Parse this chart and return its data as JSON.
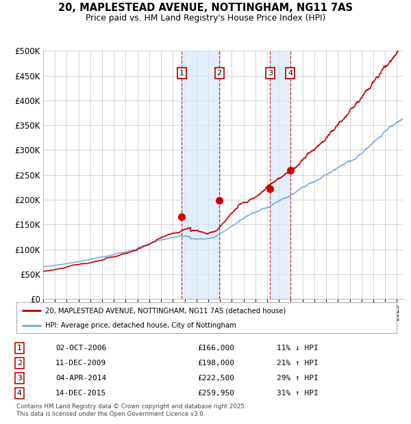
{
  "title1": "20, MAPLESTEAD AVENUE, NOTTINGHAM, NG11 7AS",
  "title2": "Price paid vs. HM Land Registry's House Price Index (HPI)",
  "ylim": [
    0,
    500000
  ],
  "yticks": [
    0,
    50000,
    100000,
    150000,
    200000,
    250000,
    300000,
    350000,
    400000,
    450000,
    500000
  ],
  "ytick_labels": [
    "£0",
    "£50K",
    "£100K",
    "£150K",
    "£200K",
    "£250K",
    "£300K",
    "£350K",
    "£400K",
    "£450K",
    "£500K"
  ],
  "red_line_color": "#cc0000",
  "blue_line_color": "#7aade0",
  "transactions": [
    {
      "date": 2006.75,
      "price": 166000,
      "label": "1"
    },
    {
      "date": 2009.94,
      "price": 198000,
      "label": "2"
    },
    {
      "date": 2014.25,
      "price": 222500,
      "label": "3"
    },
    {
      "date": 2015.95,
      "price": 259950,
      "label": "4"
    }
  ],
  "vline_pairs": [
    [
      2006.75,
      2009.94
    ],
    [
      2014.25,
      2015.95
    ]
  ],
  "legend_label_red": "20, MAPLESTEAD AVENUE, NOTTINGHAM, NG11 7AS (detached house)",
  "legend_label_blue": "HPI: Average price, detached house, City of Nottingham",
  "table_rows": [
    {
      "num": "1",
      "date": "02-OCT-2006",
      "price": "£166,000",
      "pct": "11% ↓ HPI"
    },
    {
      "num": "2",
      "date": "11-DEC-2009",
      "price": "£198,000",
      "pct": "21% ↑ HPI"
    },
    {
      "num": "3",
      "date": "04-APR-2014",
      "price": "£222,500",
      "pct": "29% ↑ HPI"
    },
    {
      "num": "4",
      "date": "14-DEC-2015",
      "price": "£259,950",
      "pct": "31% ↑ HPI"
    }
  ],
  "footnote": "Contains HM Land Registry data © Crown copyright and database right 2025.\nThis data is licensed under the Open Government Licence v3.0.",
  "xmin": 1995.0,
  "xmax": 2025.5
}
